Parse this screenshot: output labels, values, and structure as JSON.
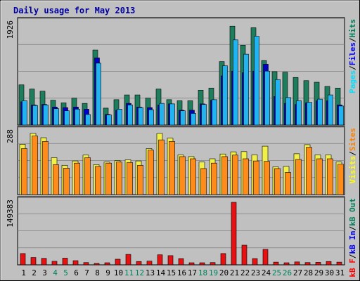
{
  "chart_data": {
    "type": "bar",
    "title": "Daily usage for May 2013",
    "categories": [
      "1",
      "2",
      "3",
      "4",
      "5",
      "6",
      "7",
      "8",
      "9",
      "10",
      "11",
      "12",
      "13",
      "14",
      "15",
      "16",
      "17",
      "18",
      "19",
      "20",
      "21",
      "22",
      "23",
      "24",
      "25",
      "26",
      "27",
      "28",
      "29",
      "30",
      "31"
    ],
    "weekend_days": [
      "4",
      "5",
      "11",
      "12",
      "18",
      "19",
      "25",
      "26"
    ],
    "panels": [
      {
        "name": "hits-files-pages",
        "ymax": 1926,
        "ymax_label": "1926",
        "legend": [
          {
            "text": "Pages",
            "color": "#00e0ff"
          },
          {
            "text": "/",
            "color": "#000000"
          },
          {
            "text": "Files",
            "color": "#0000ff"
          },
          {
            "text": "/",
            "color": "#000000"
          },
          {
            "text": "Hits",
            "color": "#00805c"
          }
        ],
        "series": [
          {
            "name": "Hits",
            "color": "#1e7d5c",
            "values": [
              760,
              680,
              640,
              470,
              420,
              510,
              410,
              1420,
              320,
              480,
              570,
              570,
              510,
              680,
              480,
              460,
              460,
              660,
              700,
              1200,
              1870,
              1510,
              1840,
              1220,
              1010,
              1000,
              900,
              840,
              810,
              730,
              700
            ]
          },
          {
            "name": "Files",
            "color": "#0000c8",
            "values": [
              440,
              380,
              390,
              340,
              330,
              340,
              300,
              1270,
              200,
              280,
              410,
              340,
              330,
              380,
              400,
              280,
              280,
              400,
              470,
              930,
              1020,
              990,
              1020,
              1150,
              540,
              410,
              390,
              420,
              460,
              460,
              380
            ]
          },
          {
            "name": "Pages",
            "color": "#22b4f0",
            "values": [
              460,
              370,
              380,
              310,
              270,
              300,
              200,
              1170,
              190,
              300,
              380,
              330,
              290,
              410,
              400,
              270,
              220,
              390,
              480,
              1120,
              1610,
              1340,
              1680,
              1020,
              860,
              520,
              460,
              430,
              490,
              570,
              360
            ]
          }
        ]
      },
      {
        "name": "visits-sites",
        "ymax": 288,
        "ymax_label": "288",
        "legend": [
          {
            "text": "Visits",
            "color": "#ffff00"
          },
          {
            "text": "/",
            "color": "#000000"
          },
          {
            "text": "Sites",
            "color": "#ff8000"
          }
        ],
        "series": [
          {
            "name": "Visits",
            "color": "#f0f048",
            "values": [
              232,
              282,
              262,
              170,
              135,
              155,
              182,
              138,
              150,
              156,
              160,
              155,
              212,
              282,
              260,
              183,
              175,
              150,
              165,
              187,
              197,
              198,
              183,
              223,
              128,
              130,
              188,
              230,
              183,
              183,
              150
            ]
          },
          {
            "name": "Sites",
            "color": "#ff8c1a",
            "values": [
              212,
              270,
              245,
              138,
              122,
              145,
              170,
              130,
              145,
              150,
              148,
              135,
              205,
              252,
              245,
              175,
              165,
              120,
              145,
              175,
              182,
              165,
              155,
              153,
              120,
              102,
              162,
              218,
              165,
              165,
              140
            ]
          }
        ]
      },
      {
        "name": "kbytes",
        "ymax": 149383,
        "ymax_label": "149383",
        "legend": [
          {
            "text": "kB F",
            "color": "#ff0000"
          },
          {
            "text": "/",
            "color": "#000000"
          },
          {
            "text": "kB In",
            "color": "#0000ff"
          },
          {
            "text": "/",
            "color": "#000000"
          },
          {
            "text": "kB Out",
            "color": "#00805c"
          }
        ],
        "series": [
          {
            "name": "kB F",
            "color": "#e81010",
            "values": [
              27000,
              17500,
              15500,
              8500,
              16000,
              10000,
              5500,
              3500,
              5000,
              13500,
              25000,
              8000,
              9000,
              24000,
              22000,
              15000,
              5000,
              5000,
              5500,
              27000,
              149383,
              47000,
              15000,
              37000,
              6500,
              5000,
              7000,
              5500,
              6000,
              8000,
              6500
            ]
          }
        ]
      }
    ]
  }
}
